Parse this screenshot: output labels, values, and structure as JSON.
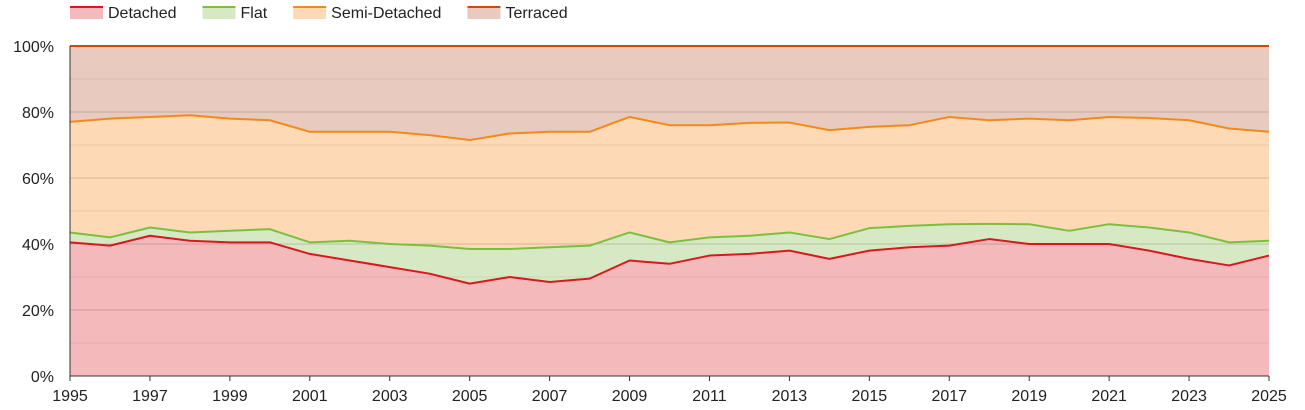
{
  "chart_data": {
    "type": "area",
    "stacked": true,
    "percent": true,
    "x": [
      1995,
      1996,
      1997,
      1998,
      1999,
      2000,
      2001,
      2002,
      2003,
      2004,
      2005,
      2006,
      2007,
      2008,
      2009,
      2010,
      2011,
      2012,
      2013,
      2014,
      2015,
      2016,
      2017,
      2018,
      2019,
      2020,
      2021,
      2022,
      2023,
      2024,
      2025
    ],
    "xticks": [
      "1995",
      "1997",
      "1999",
      "2001",
      "2003",
      "2005",
      "2007",
      "2009",
      "2011",
      "2013",
      "2015",
      "2017",
      "2019",
      "2021",
      "2023",
      "2025"
    ],
    "yticks": [
      "0%",
      "20%",
      "40%",
      "60%",
      "80%",
      "100%"
    ],
    "ylim": [
      0,
      100
    ],
    "grid": true,
    "legend_position": "top-left",
    "series": [
      {
        "name": "Detached",
        "color": "#d7191c",
        "fill": "#f4b9bb",
        "values": [
          40.5,
          39.5,
          42.5,
          41.0,
          40.5,
          40.5,
          37.0,
          35.0,
          33.0,
          31.0,
          28.0,
          30.0,
          28.5,
          29.5,
          35.0,
          34.0,
          36.5,
          37.0,
          38.0,
          35.5,
          38.0,
          39.0,
          39.5,
          41.5,
          40.0,
          40.0,
          40.0,
          38.0,
          35.5,
          33.5,
          36.5
        ]
      },
      {
        "name": "Flat",
        "color": "#7cbf3f",
        "fill": "#d7e9c4",
        "values": [
          3.0,
          2.5,
          2.5,
          2.5,
          3.5,
          4.0,
          3.5,
          6.0,
          7.0,
          8.5,
          10.5,
          8.5,
          10.5,
          10.0,
          8.5,
          6.5,
          5.5,
          5.5,
          5.5,
          6.0,
          6.8,
          6.5,
          6.5,
          4.6,
          6.0,
          4.0,
          6.0,
          7.0,
          8.0,
          7.0,
          4.5
        ]
      },
      {
        "name": "Semi-Detached",
        "color": "#f28a1a",
        "fill": "#fdd9b5",
        "values": [
          33.5,
          36.0,
          33.5,
          35.5,
          34.0,
          33.0,
          33.5,
          33.0,
          34.0,
          33.5,
          33.0,
          35.0,
          35.0,
          34.5,
          35.0,
          35.5,
          34.0,
          34.2,
          33.3,
          33.0,
          30.7,
          30.5,
          32.5,
          31.4,
          32.0,
          33.5,
          32.5,
          33.2,
          34.0,
          34.5,
          33.0
        ]
      },
      {
        "name": "Terraced",
        "color": "#cc4b12",
        "fill": "#e8cbbe",
        "values": [
          23.0,
          22.0,
          21.5,
          21.0,
          22.0,
          22.5,
          26.0,
          26.0,
          26.0,
          27.0,
          28.5,
          26.5,
          26.0,
          26.0,
          21.5,
          24.0,
          24.0,
          23.3,
          23.2,
          25.5,
          24.5,
          24.0,
          21.5,
          22.5,
          22.0,
          22.5,
          21.5,
          21.8,
          22.5,
          25.0,
          26.0
        ]
      }
    ]
  }
}
